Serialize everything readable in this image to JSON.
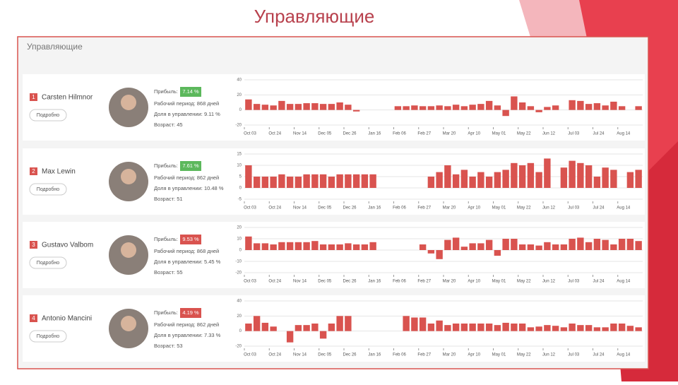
{
  "title": "Управляющие",
  "panel_title": "Управляющие",
  "managers": [
    {
      "rank": "1",
      "name": "Carsten Hilmnor",
      "button": "Подробно",
      "profit_label": "Прибыль:",
      "profit": "7.14 %",
      "profit_color": "#5cb85c",
      "period": "Рабочий период: 868 дней",
      "share": "Доля в управлении: 9.11 %",
      "age": "Возраст: 45"
    },
    {
      "rank": "2",
      "name": "Max Lewin",
      "button": "Подробно",
      "profit_label": "Прибыль:",
      "profit": "7.61 %",
      "profit_color": "#5cb85c",
      "period": "Рабочий период: 862 дней",
      "share": "Доля в управлении: 10.48 %",
      "age": "Возраст: 51"
    },
    {
      "rank": "3",
      "name": "Gustavo Valbom",
      "button": "Подробно",
      "profit_label": "Прибыль:",
      "profit": "9.53 %",
      "profit_color": "#d9534f",
      "period": "Рабочий период: 868 дней",
      "share": "Доля в управлении: 5.45 %",
      "age": "Возраст: 55"
    },
    {
      "rank": "4",
      "name": "Antonio Mancini",
      "button": "Подробно",
      "profit_label": "Прибыль:",
      "profit": "4.19 %",
      "profit_color": "#d9534f",
      "period": "Рабочий период: 862 дней",
      "share": "Доля в управлении: 7.33 %",
      "age": "Возраст: 53"
    }
  ],
  "chart_data": [
    {
      "type": "bar",
      "color": "#d9534f",
      "grid": true,
      "ylim": [
        -20,
        40
      ],
      "yticks": [
        -20,
        0,
        20,
        40
      ],
      "categories": [
        "Oct 03",
        null,
        null,
        "Oct 24",
        null,
        null,
        "Nov 14",
        null,
        null,
        "Dec 05",
        null,
        null,
        "Dec 26",
        null,
        null,
        "Jan 16",
        null,
        null,
        "Feb 06",
        null,
        null,
        "Feb 27",
        null,
        null,
        "Mar 20",
        null,
        null,
        "Apr 10",
        null,
        null,
        "May 01",
        null,
        null,
        "May 22",
        null,
        null,
        "Jun 12",
        null,
        null,
        "Jul 03",
        null,
        null,
        "Jul 24",
        null,
        null,
        "Aug 14",
        null,
        null
      ],
      "values": [
        14,
        8,
        7,
        6,
        12,
        8,
        8,
        9,
        9,
        8,
        8,
        10,
        7,
        -2,
        0,
        0,
        0,
        0,
        5,
        5,
        6,
        5,
        5,
        6,
        5,
        7,
        5,
        7,
        8,
        12,
        6,
        -8,
        18,
        10,
        5,
        -3,
        4,
        6,
        0,
        13,
        12,
        8,
        9,
        6,
        11,
        5,
        0,
        5
      ]
    },
    {
      "type": "bar",
      "color": "#d9534f",
      "grid": true,
      "ylim": [
        -5,
        15
      ],
      "yticks": [
        -5,
        0,
        5,
        10,
        15
      ],
      "categories": [
        "Oct 03",
        null,
        null,
        "Oct 24",
        null,
        null,
        "Nov 14",
        null,
        null,
        "Dec 05",
        null,
        null,
        "Dec 26",
        null,
        null,
        "Jan 16",
        null,
        null,
        "Feb 06",
        null,
        null,
        "Feb 27",
        null,
        null,
        "Mar 20",
        null,
        null,
        "Apr 10",
        null,
        null,
        "May 01",
        null,
        null,
        "May 22",
        null,
        null,
        "Jun 12",
        null,
        null,
        "Jul 03",
        null,
        null,
        "Jul 24",
        null,
        null,
        "Aug 14",
        null,
        null
      ],
      "values": [
        10,
        5,
        5,
        5,
        6,
        5,
        5,
        6,
        6,
        6,
        5,
        6,
        6,
        6,
        6,
        6,
        0,
        0,
        0,
        0,
        0,
        0,
        5,
        7,
        10,
        6,
        8,
        5,
        7,
        5,
        7,
        8,
        11,
        10,
        11,
        7,
        13,
        0,
        9,
        12,
        11,
        10,
        5,
        9,
        8,
        0,
        7,
        8
      ]
    },
    {
      "type": "bar",
      "color": "#d9534f",
      "grid": true,
      "ylim": [
        -20,
        20
      ],
      "yticks": [
        -20,
        -10,
        0,
        10,
        20
      ],
      "categories": [
        "Oct 03",
        null,
        null,
        "Oct 24",
        null,
        null,
        "Nov 14",
        null,
        null,
        "Dec 05",
        null,
        null,
        "Dec 26",
        null,
        null,
        "Jan 16",
        null,
        null,
        "Feb 06",
        null,
        null,
        "Feb 27",
        null,
        null,
        "Mar 20",
        null,
        null,
        "Apr 10",
        null,
        null,
        "May 01",
        null,
        null,
        "May 22",
        null,
        null,
        "Jun 12",
        null,
        null,
        "Jul 03",
        null,
        null,
        "Jul 24",
        null,
        null,
        "Aug 14",
        null,
        null
      ],
      "values": [
        12,
        6,
        6,
        5,
        7,
        7,
        7,
        7,
        8,
        5,
        5,
        5,
        6,
        5,
        5,
        7,
        0,
        0,
        0,
        0,
        0,
        5,
        -3,
        -8,
        9,
        11,
        3,
        6,
        6,
        9,
        -5,
        10,
        10,
        5,
        5,
        4,
        7,
        5,
        5,
        10,
        11,
        7,
        10,
        9,
        5,
        10,
        10,
        8
      ]
    },
    {
      "type": "bar",
      "color": "#d9534f",
      "grid": true,
      "ylim": [
        -20,
        40
      ],
      "yticks": [
        -20,
        0,
        20,
        40
      ],
      "categories": [
        "Oct 03",
        null,
        null,
        "Oct 24",
        null,
        null,
        "Nov 14",
        null,
        null,
        "Dec 05",
        null,
        null,
        "Dec 26",
        null,
        null,
        "Jan 16",
        null,
        null,
        "Feb 06",
        null,
        null,
        "Feb 27",
        null,
        null,
        "Mar 20",
        null,
        null,
        "Apr 10",
        null,
        null,
        "May 01",
        null,
        null,
        "May 22",
        null,
        null,
        "Jun 12",
        null,
        null,
        "Jul 03",
        null,
        null,
        "Jul 24",
        null,
        null,
        "Aug 14",
        null,
        null
      ],
      "values": [
        10,
        20,
        11,
        6,
        0,
        -15,
        8,
        8,
        10,
        -10,
        10,
        20,
        20,
        0,
        0,
        0,
        0,
        0,
        0,
        20,
        18,
        18,
        10,
        14,
        8,
        10,
        10,
        10,
        10,
        10,
        8,
        11,
        10,
        10,
        5,
        6,
        8,
        7,
        5,
        10,
        8,
        8,
        5,
        5,
        10,
        10,
        7,
        5
      ]
    }
  ]
}
